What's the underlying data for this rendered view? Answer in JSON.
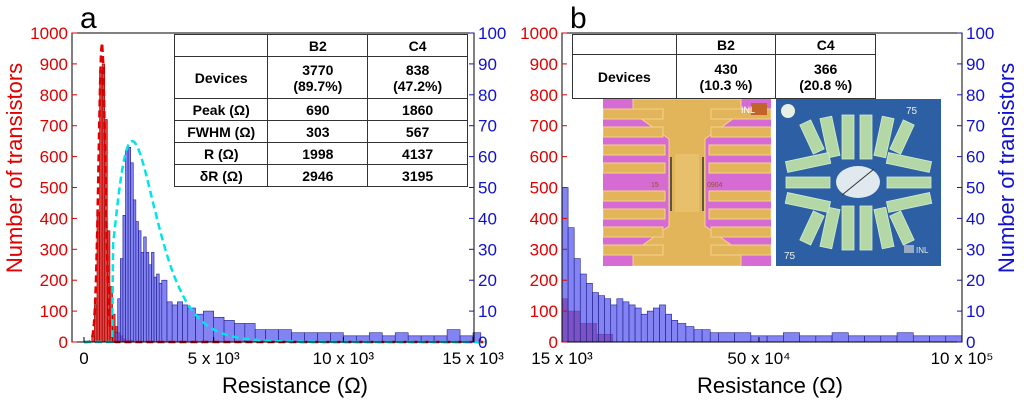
{
  "panels": [
    {
      "letter": "a",
      "left_axis": {
        "label": "Number of transistors",
        "ticks": [
          "0",
          "100",
          "200",
          "300",
          "400",
          "500",
          "600",
          "700",
          "800",
          "900",
          "1000"
        ],
        "color": "#e00000"
      },
      "right_axis": {
        "label": "",
        "ticks": [
          "0",
          "10",
          "20",
          "30",
          "40",
          "50",
          "60",
          "70",
          "80",
          "90",
          "100"
        ],
        "color": "#1010d0"
      },
      "x_axis": {
        "label": "Resistance (Ω)",
        "ticks": [
          "0",
          "5 x 10³",
          "10 x 10³",
          "15 x 10³"
        ]
      },
      "table": {
        "headers": [
          "",
          "B2",
          "C4"
        ],
        "rows": [
          {
            "label": "Devices",
            "b2": "3770\n(89.7%)",
            "c4": "838\n(47.2%)"
          },
          {
            "label": "Peak (Ω)",
            "b2": "690",
            "c4": "1860"
          },
          {
            "label": "FWHM (Ω)",
            "b2": "303",
            "c4": "567"
          },
          {
            "label": "R (Ω)",
            "b2": "1998",
            "c4": "4137"
          },
          {
            "label": "δR (Ω)",
            "b2": "2946",
            "c4": "3195"
          }
        ]
      }
    },
    {
      "letter": "b",
      "left_axis": {
        "label": "",
        "ticks": [
          "0",
          "100",
          "200",
          "300",
          "400",
          "500",
          "600",
          "700",
          "800",
          "900",
          "1000"
        ],
        "color": "#e00000"
      },
      "right_axis": {
        "label": "Number of transistors",
        "ticks": [
          "0",
          "10",
          "20",
          "30",
          "40",
          "50",
          "60",
          "70",
          "80",
          "90",
          "100"
        ],
        "color": "#1010d0"
      },
      "x_axis": {
        "label": "Resistance (Ω)",
        "ticks": [
          "15 x 10³",
          "50 x 10⁴",
          "10 x 10⁵"
        ]
      },
      "table": {
        "headers": [
          "",
          "B2",
          "C4"
        ],
        "rows": [
          {
            "label": "Devices",
            "b2": "430\n(10.3 %)",
            "c4": "366\n(20.8 %)"
          }
        ]
      },
      "insets": [
        {
          "label_top_right": "INL",
          "text_left": "15",
          "text_right": "0904",
          "colors": {
            "bg": "#d66bd3",
            "pad": "#e3b55b"
          }
        },
        {
          "label_top_right": "75",
          "label_bottom_left": "75",
          "label_bottom_right": "INL",
          "colors": {
            "bg": "#2d5fa4",
            "pad": "#b3d8a6"
          }
        }
      ]
    }
  ],
  "chart_data": [
    {
      "type": "bar",
      "title": "",
      "xlabel": "Resistance (Ω)",
      "ylabel": "Number of transistors",
      "xlim": [
        0,
        15500
      ],
      "ylim_left": [
        0,
        1000
      ],
      "ylim_right": [
        0,
        100
      ],
      "series": [
        {
          "name": "B2",
          "axis": "left",
          "color": "#e00000",
          "bin_width": 100,
          "x": [
            300,
            400,
            500,
            600,
            700,
            800,
            900,
            1000,
            1100,
            1200,
            1300,
            1400,
            1500,
            1600
          ],
          "values": [
            20,
            120,
            420,
            880,
            900,
            720,
            360,
            180,
            90,
            50,
            30,
            20,
            10,
            5
          ]
        },
        {
          "name": "C4",
          "axis": "right",
          "color": "#6464ff",
          "bin_width": 100,
          "x": [
            1200,
            1300,
            1400,
            1500,
            1600,
            1700,
            1800,
            1900,
            2000,
            2100,
            2200,
            2300,
            2400,
            2500,
            2600,
            2700,
            2800,
            2900,
            3000,
            3200,
            3400,
            3600,
            3800,
            4000,
            4300,
            4600,
            5000,
            5400,
            5800,
            6200,
            6600,
            7000,
            7500,
            8000,
            8500,
            9000,
            9500,
            10000,
            10500,
            11000,
            11500,
            12000,
            12500,
            13000,
            13500,
            14000,
            14500,
            15000
          ],
          "values": [
            3,
            14,
            27,
            41,
            62,
            63,
            58,
            46,
            39,
            36,
            29,
            34,
            29,
            25,
            29,
            21,
            22,
            19,
            20,
            13,
            12,
            13,
            12,
            11,
            9,
            10,
            8,
            7,
            6,
            6,
            4,
            4,
            4,
            3,
            3,
            3,
            3,
            2,
            2,
            3,
            2,
            3,
            2,
            2,
            2,
            4,
            2,
            3
          ]
        }
      ],
      "fit_curves": [
        {
          "name": "B2 fit",
          "color": "#e00000",
          "style": "dashed",
          "peak": 690,
          "fwhm": 303,
          "height": 970,
          "axis": "left"
        },
        {
          "name": "C4 fit",
          "color": "#00e5e5",
          "style": "dashed",
          "peak": 1860,
          "fwhm": 567,
          "height": 65,
          "axis": "right"
        }
      ]
    },
    {
      "type": "bar",
      "title": "",
      "xlabel": "Resistance (Ω)",
      "ylabel": "Number of transistors",
      "xlim": [
        15000,
        1000000
      ],
      "ylim_left": [
        0,
        1000
      ],
      "ylim_right": [
        0,
        100
      ],
      "series": [
        {
          "name": "B2",
          "axis": "left",
          "color": "#e00000",
          "x": [
            15000,
            30000,
            60000,
            100000
          ],
          "values": [
            140,
            100,
            60,
            25
          ]
        },
        {
          "name": "C4",
          "axis": "right",
          "color": "#6464ff",
          "x": [
            15000,
            30000,
            45000,
            60000,
            75000,
            90000,
            105000,
            120000,
            135000,
            150000,
            165000,
            180000,
            195000,
            210000,
            225000,
            240000,
            255000,
            270000,
            285000,
            300000,
            320000,
            340000,
            360000,
            380000,
            400000,
            440000,
            480000,
            520000,
            560000,
            600000,
            640000,
            680000,
            720000,
            760000,
            800000,
            840000,
            880000,
            920000,
            960000
          ],
          "values": [
            50,
            37,
            27,
            22,
            19,
            16,
            15,
            14,
            12,
            14,
            13,
            12,
            11,
            9,
            10,
            11,
            12,
            9,
            7,
            6,
            5,
            4,
            4,
            3,
            3,
            3,
            2,
            2,
            3,
            2,
            2,
            3,
            2,
            2,
            2,
            3,
            2,
            2,
            2
          ]
        }
      ]
    }
  ]
}
